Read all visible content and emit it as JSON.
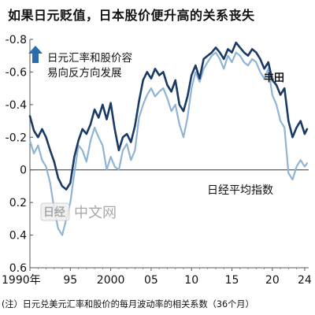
{
  "title": "如果日元贬值，日本股价便升高的关系丧失",
  "footnote": "(注）日元兑美元汇率和股价的每月波动率的相关系数（36个月）",
  "watermark": {
    "logo_text": "日经",
    "text": "中文网"
  },
  "annotations": {
    "arrow_line1": "日元汇率和股价容",
    "arrow_line2": "易向反方向发展",
    "toyota_label": "丰田",
    "nikkei_label": "日经平均指数"
  },
  "colors": {
    "toyota": "#1a3a66",
    "nikkei": "#8fb4d6",
    "arrow": "#2b6cb0",
    "text": "#111111"
  },
  "chart_data": {
    "type": "line",
    "title": "如果日元贬值，日本股价便升高的关系丧失",
    "y_axis": {
      "inverted": true,
      "range": [
        -0.8,
        0.6
      ],
      "tick_values": [
        -0.8,
        -0.6,
        -0.4,
        -0.2,
        0,
        0.2,
        0.4,
        0.6
      ],
      "tick_labels": [
        "-0.8",
        "-0.6",
        "-0.4",
        "-0.2",
        "0",
        "0.2",
        "0.4",
        "0.6"
      ]
    },
    "x_axis": {
      "range": [
        1990,
        2024.5
      ],
      "tick_values": [
        1990,
        1995,
        2000,
        2005,
        2010,
        2015,
        2020,
        2024
      ],
      "tick_labels": [
        "1990年",
        "95",
        "2000",
        "05",
        "10",
        "15",
        "20",
        "24"
      ]
    },
    "series": [
      {
        "name": "丰田",
        "x": [
          1990.0,
          1990.5,
          1991.0,
          1991.5,
          1992.0,
          1992.5,
          1993.0,
          1993.5,
          1994.0,
          1994.5,
          1995.0,
          1995.5,
          1996.0,
          1996.5,
          1997.0,
          1997.5,
          1998.0,
          1998.5,
          1999.0,
          1999.5,
          2000.0,
          2000.5,
          2001.0,
          2001.5,
          2002.0,
          2002.5,
          2003.0,
          2003.5,
          2004.0,
          2004.5,
          2005.0,
          2005.5,
          2006.0,
          2006.5,
          2007.0,
          2007.5,
          2008.0,
          2008.5,
          2009.0,
          2009.5,
          2010.0,
          2010.5,
          2011.0,
          2011.5,
          2012.0,
          2012.5,
          2013.0,
          2013.5,
          2014.0,
          2014.5,
          2015.0,
          2015.5,
          2016.0,
          2016.5,
          2017.0,
          2017.5,
          2018.0,
          2018.5,
          2019.0,
          2019.5,
          2020.0,
          2020.5,
          2021.0,
          2021.5,
          2022.0,
          2022.5,
          2023.0,
          2023.5,
          2024.0,
          2024.3
        ],
        "y": [
          -0.33,
          -0.24,
          -0.2,
          -0.25,
          -0.2,
          -0.12,
          -0.05,
          0.05,
          0.1,
          0.12,
          0.08,
          -0.08,
          -0.18,
          -0.25,
          -0.22,
          -0.28,
          -0.37,
          -0.32,
          -0.4,
          -0.31,
          -0.41,
          -0.25,
          -0.12,
          -0.2,
          -0.22,
          -0.17,
          -0.27,
          -0.42,
          -0.55,
          -0.6,
          -0.56,
          -0.62,
          -0.58,
          -0.6,
          -0.52,
          -0.48,
          -0.55,
          -0.4,
          -0.36,
          -0.45,
          -0.58,
          -0.64,
          -0.56,
          -0.68,
          -0.7,
          -0.72,
          -0.75,
          -0.72,
          -0.68,
          -0.74,
          -0.72,
          -0.78,
          -0.75,
          -0.72,
          -0.7,
          -0.74,
          -0.72,
          -0.68,
          -0.62,
          -0.66,
          -0.55,
          -0.52,
          -0.46,
          -0.5,
          -0.3,
          -0.2,
          -0.26,
          -0.3,
          -0.22,
          -0.25
        ]
      },
      {
        "name": "日经平均指数",
        "x": [
          1990.0,
          1990.5,
          1991.0,
          1991.5,
          1992.0,
          1992.5,
          1993.0,
          1993.5,
          1994.0,
          1994.5,
          1995.0,
          1995.5,
          1996.0,
          1996.5,
          1997.0,
          1997.5,
          1998.0,
          1998.5,
          1999.0,
          1999.5,
          2000.0,
          2000.5,
          2001.0,
          2001.5,
          2002.0,
          2002.5,
          2003.0,
          2003.5,
          2004.0,
          2004.5,
          2005.0,
          2005.5,
          2006.0,
          2006.5,
          2007.0,
          2007.5,
          2008.0,
          2008.5,
          2009.0,
          2009.5,
          2010.0,
          2010.5,
          2011.0,
          2011.5,
          2012.0,
          2012.5,
          2013.0,
          2013.5,
          2014.0,
          2014.5,
          2015.0,
          2015.5,
          2016.0,
          2016.5,
          2017.0,
          2017.5,
          2018.0,
          2018.5,
          2019.0,
          2019.5,
          2020.0,
          2020.5,
          2021.0,
          2021.5,
          2022.0,
          2022.5,
          2023.0,
          2023.5,
          2024.0,
          2024.3
        ],
        "y": [
          -0.18,
          -0.1,
          -0.15,
          -0.06,
          -0.02,
          0.08,
          0.24,
          0.36,
          0.4,
          0.3,
          0.2,
          0.02,
          -0.15,
          -0.12,
          -0.05,
          -0.18,
          -0.26,
          -0.2,
          -0.15,
          0.0,
          -0.08,
          -0.02,
          0.0,
          -0.12,
          -0.16,
          -0.06,
          -0.12,
          -0.32,
          -0.4,
          -0.46,
          -0.5,
          -0.45,
          -0.48,
          -0.5,
          -0.44,
          -0.36,
          -0.4,
          -0.28,
          -0.2,
          -0.32,
          -0.5,
          -0.6,
          -0.54,
          -0.62,
          -0.66,
          -0.7,
          -0.72,
          -0.68,
          -0.62,
          -0.7,
          -0.66,
          -0.72,
          -0.7,
          -0.66,
          -0.64,
          -0.68,
          -0.66,
          -0.6,
          -0.56,
          -0.62,
          -0.46,
          -0.4,
          -0.3,
          -0.26,
          0.02,
          0.06,
          -0.02,
          -0.06,
          -0.02,
          -0.04
        ]
      }
    ]
  }
}
